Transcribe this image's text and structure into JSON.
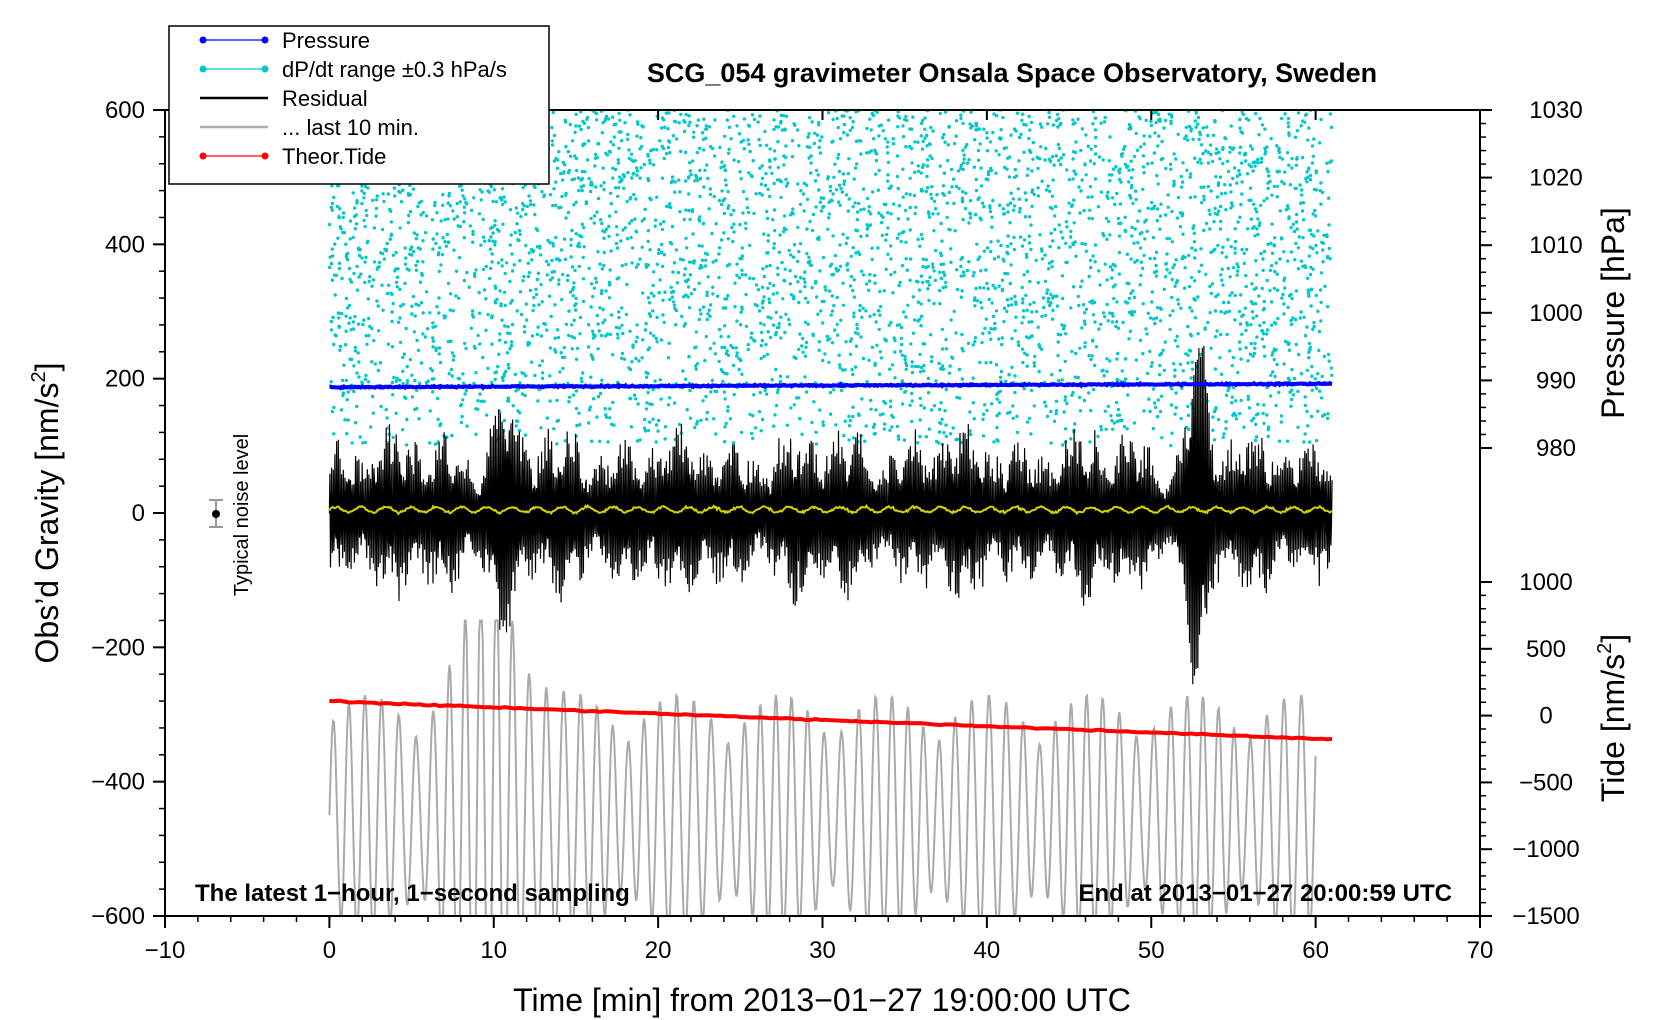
{
  "chart_data": {
    "type": "line",
    "title": "SCG_054 gravimeter Onsala Space Observatory, Sweden",
    "xlabel": "Time [min] from 2013−01−27 19:00:00 UTC",
    "ylabel": "Obs’d Gravity [nm/s",
    "ylabel_sup": "2",
    "ylabel_close": "]",
    "y2label_pressure": "Pressure [hPa]",
    "y2label_tide": "Tide [nm/s",
    "y2label_tide_sup": "2",
    "y2label_tide_close": "]",
    "xlim": [
      -10,
      70
    ],
    "ylim": [
      -600,
      600
    ],
    "pressure_axis_range": [
      980,
      1030
    ],
    "tide_axis_range": [
      -1500,
      1000
    ],
    "x_ticks": [
      "−10",
      "0",
      "10",
      "20",
      "30",
      "40",
      "50",
      "60",
      "70"
    ],
    "y_ticks": [
      "600",
      "400",
      "200",
      "0",
      "−200",
      "−400",
      "−600"
    ],
    "pressure_ticks": [
      "1030",
      "1020",
      "1010",
      "1000",
      "990",
      "980"
    ],
    "tide_ticks": [
      "1000",
      "500",
      "0",
      "−500",
      "−1000",
      "−1500"
    ],
    "legend": [
      {
        "label": "Pressure",
        "color": "#0000ff",
        "marker": true
      },
      {
        "label": "dP/dt range ±0.3 hPa/s",
        "color": "#00c8c8",
        "marker": true
      },
      {
        "label": "Residual",
        "color": "#000000",
        "marker": false
      },
      {
        "label": "... last 10 min.",
        "color": "#aaaaaa",
        "marker": false
      },
      {
        "label": "Theor.Tide",
        "color": "#ff0000",
        "marker": true
      }
    ],
    "annotations": {
      "bottom_left": "The latest 1−hour, 1−second sampling",
      "bottom_right": "End at 2013−01−27 20:00:59 UTC",
      "noise_label": "Typical noise level"
    },
    "noise_level": {
      "x": -7,
      "y": 0,
      "err": 20
    },
    "series": [
      {
        "name": "Pressure",
        "color": "#0000ff",
        "unit": "hPa",
        "x_range": [
          0,
          61
        ],
        "start": 989.0,
        "end": 989.5,
        "noise": 0.25
      },
      {
        "name": "dP/dt range ±0.3 hPa/s",
        "color": "#00c8c8",
        "unit": "nm/s2",
        "x_range": [
          0,
          61
        ],
        "y_range": [
          100,
          600
        ],
        "points": 4200
      },
      {
        "name": "Residual",
        "color": "#000000",
        "unit": "nm/s2",
        "x_range": [
          0,
          61
        ],
        "center": 0,
        "typical_amplitude": 90,
        "max_amplitude": 290,
        "min_value": -255
      },
      {
        "name": "... last 10 min.",
        "color": "#aaaaaa",
        "unit": "nm/s2",
        "x_range": [
          0,
          60
        ],
        "center": -450,
        "typical_amplitude": 150,
        "min_value": -700,
        "max_value": -160
      },
      {
        "name": "Theor.Tide",
        "color": "#ff0000",
        "unit": "nm/s2",
        "x_range": [
          0,
          61
        ],
        "start": -280,
        "end": -337
      },
      {
        "name": "Smoothed residual",
        "color": "#d2d200",
        "unit": "nm/s2",
        "x_range": [
          0,
          61
        ],
        "center": 5,
        "typical_amplitude": 4
      }
    ]
  }
}
